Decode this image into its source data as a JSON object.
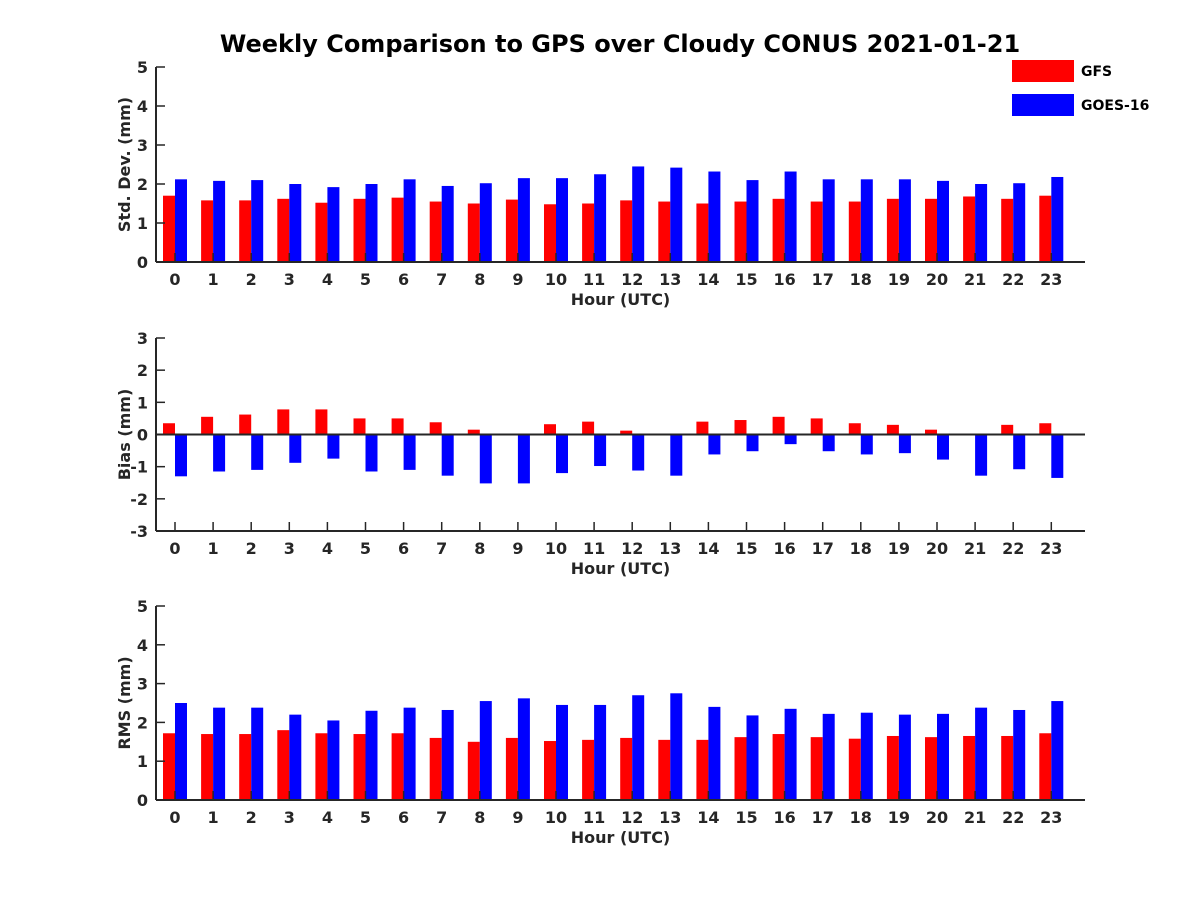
{
  "title": "Weekly Comparison to GPS over Cloudy CONUS 2021-01-21",
  "legend": [
    {
      "label": "GFS",
      "color": "#ff0000"
    },
    {
      "label": "GOES-16",
      "color": "#0000ff"
    }
  ],
  "chart_data": [
    {
      "type": "bar",
      "xlabel": "Hour (UTC)",
      "ylabel": "Std. Dev. (mm)",
      "ylim": [
        0,
        5
      ],
      "yticks": [
        0,
        1,
        2,
        3,
        4,
        5
      ],
      "categories": [
        "0",
        "1",
        "2",
        "3",
        "4",
        "5",
        "6",
        "7",
        "8",
        "9",
        "10",
        "11",
        "12",
        "13",
        "14",
        "15",
        "16",
        "17",
        "18",
        "19",
        "20",
        "21",
        "22",
        "23"
      ],
      "series": [
        {
          "name": "GFS",
          "color": "#ff0000",
          "values": [
            1.7,
            1.58,
            1.58,
            1.62,
            1.52,
            1.62,
            1.65,
            1.55,
            1.5,
            1.6,
            1.48,
            1.5,
            1.58,
            1.55,
            1.5,
            1.55,
            1.62,
            1.55,
            1.55,
            1.62,
            1.62,
            1.68,
            1.62,
            1.7
          ]
        },
        {
          "name": "GOES-16",
          "color": "#0000ff",
          "values": [
            2.12,
            2.08,
            2.1,
            2.0,
            1.92,
            2.0,
            2.12,
            1.95,
            2.02,
            2.15,
            2.15,
            2.25,
            2.45,
            2.42,
            2.32,
            2.1,
            2.32,
            2.12,
            2.12,
            2.12,
            2.08,
            2.0,
            2.02,
            2.18
          ]
        }
      ],
      "grid": false
    },
    {
      "type": "bar",
      "xlabel": "Hour (UTC)",
      "ylabel": "Bias (mm)",
      "ylim": [
        -3,
        3
      ],
      "yticks": [
        -3,
        -2,
        -1,
        0,
        1,
        2,
        3
      ],
      "categories": [
        "0",
        "1",
        "2",
        "3",
        "4",
        "5",
        "6",
        "7",
        "8",
        "9",
        "10",
        "11",
        "12",
        "13",
        "14",
        "15",
        "16",
        "17",
        "18",
        "19",
        "20",
        "21",
        "22",
        "23"
      ],
      "series": [
        {
          "name": "GFS",
          "color": "#ff0000",
          "values": [
            0.35,
            0.55,
            0.62,
            0.78,
            0.78,
            0.5,
            0.5,
            0.38,
            0.15,
            0.02,
            0.32,
            0.4,
            0.12,
            0.03,
            0.4,
            0.45,
            0.55,
            0.5,
            0.35,
            0.3,
            0.15,
            -0.03,
            0.3,
            0.35
          ]
        },
        {
          "name": "GOES-16",
          "color": "#0000ff",
          "values": [
            -1.3,
            -1.15,
            -1.1,
            -0.88,
            -0.75,
            -1.15,
            -1.1,
            -1.28,
            -1.52,
            -1.52,
            -1.2,
            -0.98,
            -1.12,
            -1.28,
            -0.62,
            -0.52,
            -0.3,
            -0.52,
            -0.62,
            -0.58,
            -0.78,
            -1.28,
            -1.08,
            -1.35
          ]
        }
      ],
      "grid": false
    },
    {
      "type": "bar",
      "xlabel": "Hour (UTC)",
      "ylabel": "RMS (mm)",
      "ylim": [
        0,
        5
      ],
      "yticks": [
        0,
        1,
        2,
        3,
        4,
        5
      ],
      "categories": [
        "0",
        "1",
        "2",
        "3",
        "4",
        "5",
        "6",
        "7",
        "8",
        "9",
        "10",
        "11",
        "12",
        "13",
        "14",
        "15",
        "16",
        "17",
        "18",
        "19",
        "20",
        "21",
        "22",
        "23"
      ],
      "series": [
        {
          "name": "GFS",
          "color": "#ff0000",
          "values": [
            1.72,
            1.7,
            1.7,
            1.8,
            1.72,
            1.7,
            1.72,
            1.6,
            1.5,
            1.6,
            1.52,
            1.55,
            1.6,
            1.55,
            1.55,
            1.62,
            1.7,
            1.62,
            1.58,
            1.65,
            1.62,
            1.65,
            1.65,
            1.72
          ]
        },
        {
          "name": "GOES-16",
          "color": "#0000ff",
          "values": [
            2.5,
            2.38,
            2.38,
            2.2,
            2.05,
            2.3,
            2.38,
            2.32,
            2.55,
            2.62,
            2.45,
            2.45,
            2.7,
            2.75,
            2.4,
            2.18,
            2.35,
            2.22,
            2.25,
            2.2,
            2.22,
            2.38,
            2.32,
            2.55
          ]
        }
      ],
      "grid": false
    }
  ]
}
